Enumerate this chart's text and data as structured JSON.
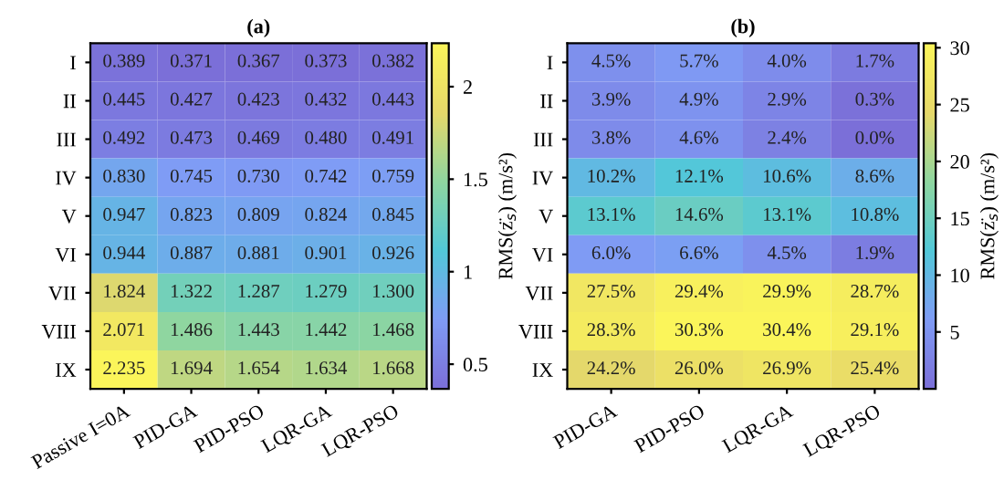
{
  "chart_data": [
    {
      "type": "heatmap",
      "title": "(a)",
      "clabel": "RMS(z̈$_{s}$) (m/s²)",
      "categories": [
        "Passive I=0A",
        "PID-GA",
        "PID-PSO",
        "LQR-GA",
        "LQR-PSO"
      ],
      "y_categories": [
        "I",
        "II",
        "III",
        "IV",
        "V",
        "VI",
        "VII",
        "VIII",
        "IX"
      ],
      "cells": [
        [
          0.389,
          0.371,
          0.367,
          0.373,
          0.382
        ],
        [
          0.445,
          0.427,
          0.423,
          0.432,
          0.443
        ],
        [
          0.492,
          0.473,
          0.469,
          0.48,
          0.491
        ],
        [
          0.83,
          0.745,
          0.73,
          0.742,
          0.759
        ],
        [
          0.947,
          0.823,
          0.809,
          0.824,
          0.845
        ],
        [
          0.944,
          0.887,
          0.881,
          0.901,
          0.926
        ],
        [
          1.824,
          1.322,
          1.287,
          1.279,
          1.3
        ],
        [
          2.071,
          1.486,
          1.443,
          1.442,
          1.468
        ],
        [
          2.235,
          1.694,
          1.654,
          1.634,
          1.668
        ]
      ],
      "cell_labels": [
        [
          "0.389",
          "0.371",
          "0.367",
          "0.373",
          "0.382"
        ],
        [
          "0.445",
          "0.427",
          "0.423",
          "0.432",
          "0.443"
        ],
        [
          "0.492",
          "0.473",
          "0.469",
          "0.480",
          "0.491"
        ],
        [
          "0.830",
          "0.745",
          "0.730",
          "0.742",
          "0.759"
        ],
        [
          "0.947",
          "0.823",
          "0.809",
          "0.824",
          "0.845"
        ],
        [
          "0.944",
          "0.887",
          "0.881",
          "0.901",
          "0.926"
        ],
        [
          "1.824",
          "1.322",
          "1.287",
          "1.279",
          "1.300"
        ],
        [
          "2.071",
          "1.486",
          "1.443",
          "1.442",
          "1.468"
        ],
        [
          "2.235",
          "1.694",
          "1.654",
          "1.634",
          "1.668"
        ]
      ],
      "clim": [
        0.367,
        2.235
      ],
      "cticks": [
        0.5,
        1,
        1.5,
        2
      ]
    },
    {
      "type": "heatmap",
      "title": "(b)",
      "clabel": "RMS(z̈$_{s}$) (m/s²)",
      "categories": [
        "PID-GA",
        "PID-PSO",
        "LQR-GA",
        "LQR-PSO"
      ],
      "y_categories": [
        "I",
        "II",
        "III",
        "IV",
        "V",
        "VI",
        "VII",
        "VIII",
        "IX"
      ],
      "cells": [
        [
          4.5,
          5.7,
          4.0,
          1.7
        ],
        [
          3.9,
          4.9,
          2.9,
          0.3
        ],
        [
          3.8,
          4.6,
          2.4,
          0.0
        ],
        [
          10.2,
          12.1,
          10.6,
          8.6
        ],
        [
          13.1,
          14.6,
          13.1,
          10.8
        ],
        [
          6.0,
          6.6,
          4.5,
          1.9
        ],
        [
          27.5,
          29.4,
          29.9,
          28.7
        ],
        [
          28.3,
          30.3,
          30.4,
          29.1
        ],
        [
          24.2,
          26.0,
          26.9,
          25.4
        ]
      ],
      "cell_labels": [
        [
          "4.5%",
          "5.7%",
          "4.0%",
          "1.7%"
        ],
        [
          "3.9%",
          "4.9%",
          "2.9%",
          "0.3%"
        ],
        [
          "3.8%",
          "4.6%",
          "2.4%",
          "0.0%"
        ],
        [
          "10.2%",
          "12.1%",
          "10.6%",
          "8.6%"
        ],
        [
          "13.1%",
          "14.6%",
          "13.1%",
          "10.8%"
        ],
        [
          "6.0%",
          "6.6%",
          "4.5%",
          "1.9%"
        ],
        [
          "27.5%",
          "29.4%",
          "29.9%",
          "28.7%"
        ],
        [
          "28.3%",
          "30.3%",
          "30.4%",
          "29.1%"
        ],
        [
          "24.2%",
          "26.0%",
          "26.9%",
          "25.4%"
        ]
      ],
      "clim": [
        0.0,
        30.4
      ],
      "cticks": [
        5,
        10,
        15,
        20,
        25,
        30
      ]
    }
  ]
}
